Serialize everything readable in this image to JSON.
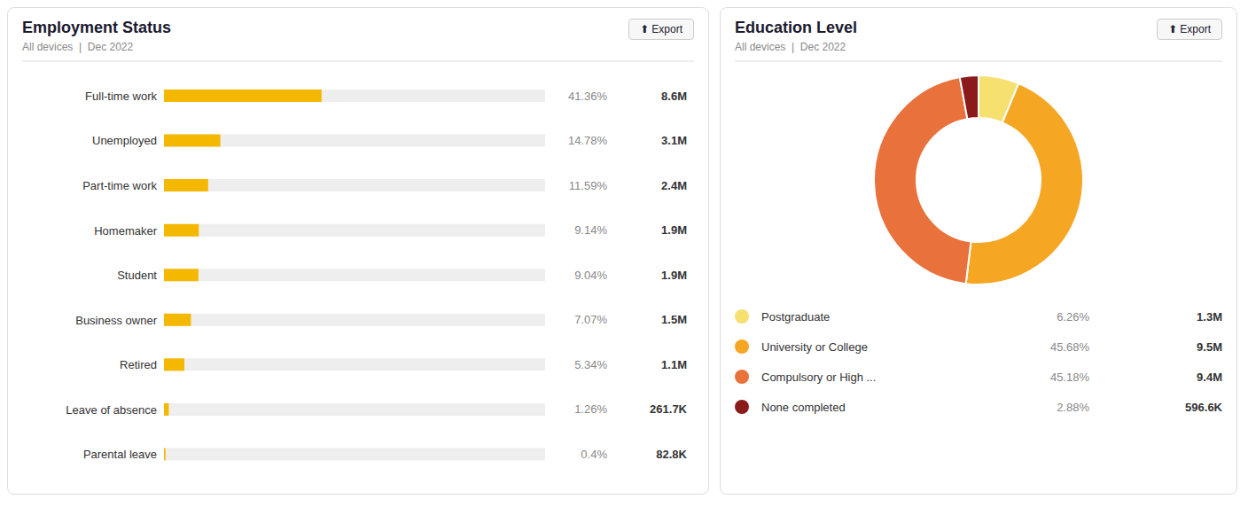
{
  "chart_data": [
    {
      "type": "bar",
      "orientation": "horizontal",
      "title": "Employment Status",
      "subtitle": "All devices  |  Dec 2022",
      "annotations": [
        "⬆ Export"
      ],
      "categories": [
        "Full-time work",
        "Unemployed",
        "Part-time work",
        "Homemaker",
        "Student",
        "Business owner",
        "Retired",
        "Leave of absence",
        "Parental leave"
      ],
      "values": [
        41.36,
        14.78,
        11.59,
        9.14,
        9.04,
        7.07,
        5.34,
        1.26,
        0.4
      ],
      "value_labels": [
        "41.36%",
        "14.78%",
        "11.59%",
        "9.14%",
        "9.04%",
        "7.07%",
        "5.34%",
        "1.26%",
        "0.4%"
      ],
      "counts": [
        "8.6M",
        "3.1M",
        "2.4M",
        "1.9M",
        "1.9M",
        "1.5M",
        "1.1M",
        "261.7K",
        "82.8K"
      ],
      "color": "#F5B800",
      "xlim": [
        0,
        100
      ],
      "tick_labels": "y"
    },
    {
      "type": "pie",
      "title": "Education Level",
      "subtitle": "All devices  |  Dec 2022",
      "annotations": [
        "⬆ Export"
      ],
      "categories": [
        "Postgraduate",
        "University or College",
        "Compulsory or High ...",
        "None completed"
      ],
      "values": [
        6.26,
        45.68,
        45.18,
        2.88
      ],
      "value_labels": [
        "6.26%",
        "45.68%",
        "45.18%",
        "2.88%"
      ],
      "counts": [
        "1.3M",
        "9.5M",
        "9.4M",
        "596.6K"
      ],
      "colors": [
        "#F5E070",
        "#F5A623",
        "#E8713C",
        "#8B1A1A"
      ]
    }
  ]
}
